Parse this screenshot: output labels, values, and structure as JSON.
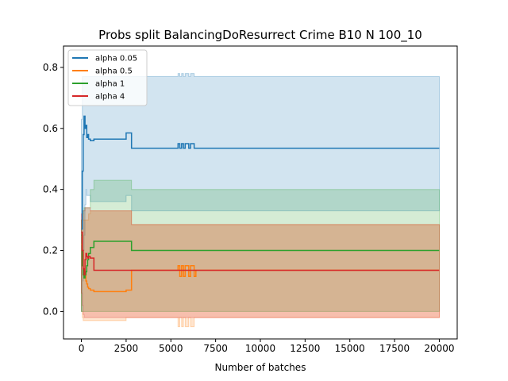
{
  "chart_data": {
    "type": "line",
    "title": "Probs split BalancingDoResurrect Crime B10 N 100_10",
    "xlabel": "Number of batches",
    "ylabel": "",
    "xlim": [
      -1000,
      21000
    ],
    "ylim": [
      -0.09,
      0.87
    ],
    "x_ticks": [
      0,
      2500,
      5000,
      7500,
      10000,
      12500,
      15000,
      17500,
      20000
    ],
    "x_tick_labels": [
      "0",
      "2500",
      "5000",
      "7500",
      "10000",
      "12500",
      "15000",
      "17500",
      "20000"
    ],
    "y_ticks": [
      0.0,
      0.2,
      0.4,
      0.6,
      0.8
    ],
    "y_tick_labels": [
      "0.0",
      "0.2",
      "0.4",
      "0.6",
      "0.8"
    ],
    "grid": false,
    "legend_position": "top-left",
    "series": [
      {
        "name": "alpha 0.05",
        "color": "#1f77b4",
        "x": [
          0,
          50,
          100,
          150,
          200,
          250,
          300,
          350,
          400,
          500,
          700,
          2500,
          2800,
          5400,
          5500,
          5600,
          5700,
          5800,
          6000,
          6100,
          6300,
          6400,
          20000
        ],
        "values": [
          0.27,
          0.46,
          0.58,
          0.64,
          0.6,
          0.61,
          0.57,
          0.58,
          0.565,
          0.56,
          0.565,
          0.585,
          0.535,
          0.55,
          0.535,
          0.55,
          0.535,
          0.55,
          0.535,
          0.55,
          0.535,
          0.535,
          0.535
        ],
        "band_low": [
          0.0,
          0.1,
          0.2,
          0.25,
          0.35,
          0.4,
          0.38,
          0.38,
          0.38,
          0.36,
          0.36,
          0.38,
          0.33,
          0.33,
          0.33,
          0.33,
          0.33,
          0.33,
          0.33,
          0.33,
          0.33,
          0.33,
          0.33
        ],
        "band_high": [
          0.63,
          0.77,
          0.77,
          0.77,
          0.77,
          0.77,
          0.77,
          0.77,
          0.77,
          0.77,
          0.77,
          0.77,
          0.77,
          0.78,
          0.77,
          0.78,
          0.77,
          0.78,
          0.77,
          0.78,
          0.77,
          0.77,
          0.77
        ]
      },
      {
        "name": "alpha 0.5",
        "color": "#ff7f0e",
        "x": [
          0,
          50,
          100,
          150,
          200,
          250,
          300,
          350,
          400,
          500,
          700,
          2500,
          2800,
          5400,
          5500,
          5600,
          5700,
          5800,
          6000,
          6100,
          6300,
          6400,
          20000
        ],
        "values": [
          0.22,
          0.17,
          0.12,
          0.11,
          0.13,
          0.1,
          0.09,
          0.08,
          0.075,
          0.07,
          0.065,
          0.07,
          0.135,
          0.15,
          0.115,
          0.15,
          0.115,
          0.15,
          0.115,
          0.15,
          0.115,
          0.135,
          0.135
        ],
        "band_low": [
          0.0,
          -0.02,
          -0.03,
          -0.03,
          -0.03,
          -0.03,
          -0.03,
          -0.03,
          -0.03,
          -0.03,
          -0.03,
          -0.02,
          -0.02,
          -0.05,
          -0.02,
          -0.05,
          -0.02,
          -0.05,
          -0.02,
          -0.05,
          -0.02,
          -0.02,
          -0.02
        ],
        "band_high": [
          0.3,
          0.32,
          0.3,
          0.3,
          0.3,
          0.3,
          0.3,
          0.3,
          0.32,
          0.33,
          0.33,
          0.33,
          0.285,
          0.285,
          0.285,
          0.285,
          0.285,
          0.285,
          0.285,
          0.285,
          0.285,
          0.285,
          0.285
        ]
      },
      {
        "name": "alpha 1",
        "color": "#2ca02c",
        "x": [
          0,
          50,
          100,
          150,
          200,
          250,
          300,
          350,
          400,
          500,
          700,
          2500,
          2800,
          5400,
          5500,
          5600,
          5700,
          5800,
          6000,
          6100,
          6300,
          6400,
          20000
        ],
        "values": [
          0.25,
          0.15,
          0.12,
          0.11,
          0.12,
          0.13,
          0.15,
          0.17,
          0.19,
          0.21,
          0.23,
          0.23,
          0.2,
          0.2,
          0.2,
          0.2,
          0.2,
          0.2,
          0.2,
          0.2,
          0.2,
          0.2,
          0.2
        ],
        "band_low": [
          0.0,
          0.0,
          0.0,
          0.0,
          0.0,
          0.0,
          0.0,
          0.0,
          0.0,
          0.0,
          0.0,
          0.0,
          0.0,
          0.0,
          0.0,
          0.0,
          0.0,
          0.0,
          0.0,
          0.0,
          0.0,
          0.0,
          0.0
        ],
        "band_high": [
          0.3,
          0.32,
          0.33,
          0.34,
          0.34,
          0.34,
          0.34,
          0.34,
          0.34,
          0.4,
          0.43,
          0.43,
          0.4,
          0.4,
          0.4,
          0.4,
          0.4,
          0.4,
          0.4,
          0.4,
          0.4,
          0.4,
          0.4
        ]
      },
      {
        "name": "alpha 4",
        "color": "#d62728",
        "x": [
          0,
          50,
          100,
          150,
          200,
          250,
          300,
          350,
          400,
          500,
          700,
          2500,
          2800,
          5400,
          5500,
          5600,
          5700,
          5800,
          6000,
          6100,
          6300,
          6400,
          20000
        ],
        "values": [
          0.26,
          0.2,
          0.14,
          0.12,
          0.17,
          0.19,
          0.18,
          0.175,
          0.18,
          0.175,
          0.135,
          0.135,
          0.135,
          0.135,
          0.135,
          0.135,
          0.135,
          0.135,
          0.135,
          0.135,
          0.135,
          0.135,
          0.135
        ],
        "band_low": [
          0.06,
          0.02,
          -0.01,
          -0.02,
          -0.02,
          -0.02,
          -0.02,
          -0.02,
          -0.02,
          -0.02,
          -0.02,
          -0.02,
          -0.02,
          -0.02,
          -0.02,
          -0.02,
          -0.02,
          -0.02,
          -0.02,
          -0.02,
          -0.02,
          -0.02,
          -0.02
        ],
        "band_high": [
          0.32,
          0.33,
          0.33,
          0.33,
          0.34,
          0.34,
          0.34,
          0.34,
          0.34,
          0.33,
          0.33,
          0.33,
          0.285,
          0.285,
          0.285,
          0.285,
          0.285,
          0.285,
          0.285,
          0.285,
          0.285,
          0.285,
          0.285
        ]
      }
    ]
  }
}
